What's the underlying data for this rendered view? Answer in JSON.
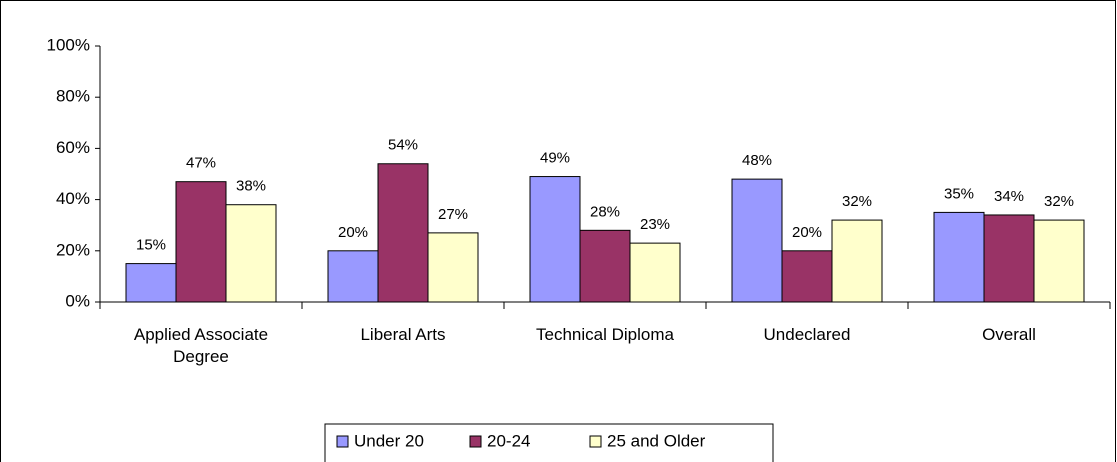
{
  "chart_data": {
    "type": "bar",
    "categories": [
      "Applied Associate Degree",
      "Liberal Arts",
      "Technical Diploma",
      "Undeclared",
      "Overall"
    ],
    "series": [
      {
        "name": "Under 20",
        "color": "#9999ff",
        "values": [
          15,
          20,
          49,
          48,
          35
        ],
        "value_labels": [
          "15%",
          "20%",
          "49%",
          "48%",
          "35%"
        ]
      },
      {
        "name": "20-24",
        "color": "#993366",
        "values": [
          47,
          54,
          28,
          20,
          34
        ],
        "value_labels": [
          "47%",
          "54%",
          "28%",
          "20%",
          "34%"
        ]
      },
      {
        "name": "25 and Older",
        "color": "#ffffcc",
        "values": [
          38,
          27,
          23,
          32,
          32
        ],
        "value_labels": [
          "38%",
          "27%",
          "23%",
          "32%",
          "32%"
        ]
      }
    ],
    "ylim": [
      0,
      100
    ],
    "yticks": [
      {
        "value": 0,
        "label": "0%"
      },
      {
        "value": 20,
        "label": "20%"
      },
      {
        "value": 40,
        "label": "40%"
      },
      {
        "value": 60,
        "label": "60%"
      },
      {
        "value": 80,
        "label": "80%"
      },
      {
        "value": 100,
        "label": "100%"
      }
    ],
    "grid": false,
    "legend": "bottom"
  }
}
